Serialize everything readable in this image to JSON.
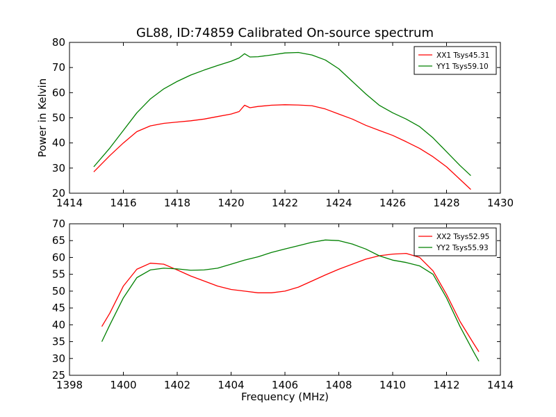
{
  "figure": {
    "title": "GL88, ID:74859 Calibrated On-source spectrum"
  },
  "chart_data": [
    {
      "type": "line",
      "ylabel": "Power in Kelvin",
      "xlabel": "",
      "xlim": [
        1414,
        1430
      ],
      "ylim": [
        20,
        80
      ],
      "xticks": [
        1414,
        1416,
        1418,
        1420,
        1422,
        1424,
        1426,
        1428,
        1430
      ],
      "yticks": [
        20,
        30,
        40,
        50,
        60,
        70,
        80
      ],
      "legend": "top-right",
      "series": [
        {
          "name": "XX1 Tsys45.31",
          "color": "#ff0000",
          "x": [
            1414.9,
            1415.5,
            1416.0,
            1416.5,
            1417.0,
            1417.5,
            1418.0,
            1418.5,
            1419.0,
            1419.5,
            1420.0,
            1420.3,
            1420.5,
            1420.7,
            1421.0,
            1421.5,
            1422.0,
            1422.5,
            1423.0,
            1423.5,
            1424.0,
            1424.5,
            1425.0,
            1425.5,
            1426.0,
            1426.5,
            1427.0,
            1427.5,
            1428.0,
            1428.5,
            1428.9
          ],
          "y": [
            28.5,
            35.0,
            40.0,
            44.5,
            46.8,
            47.8,
            48.3,
            48.8,
            49.5,
            50.5,
            51.5,
            52.5,
            55.0,
            54.0,
            54.5,
            55.0,
            55.2,
            55.1,
            54.8,
            53.5,
            51.5,
            49.5,
            47.0,
            45.0,
            43.0,
            40.5,
            37.8,
            34.5,
            30.5,
            25.5,
            21.5
          ]
        },
        {
          "name": "YY1 Tsys59.10",
          "color": "#008000",
          "x": [
            1414.9,
            1415.5,
            1416.0,
            1416.5,
            1417.0,
            1417.5,
            1418.0,
            1418.5,
            1419.0,
            1419.5,
            1420.0,
            1420.3,
            1420.5,
            1420.7,
            1421.0,
            1421.5,
            1422.0,
            1422.5,
            1423.0,
            1423.5,
            1424.0,
            1424.5,
            1425.0,
            1425.5,
            1426.0,
            1426.5,
            1427.0,
            1427.5,
            1428.0,
            1428.5,
            1428.9
          ],
          "y": [
            30.5,
            38.0,
            45.0,
            52.0,
            57.5,
            61.5,
            64.5,
            67.0,
            69.0,
            70.8,
            72.5,
            73.8,
            75.5,
            74.2,
            74.3,
            75.0,
            75.8,
            76.0,
            75.0,
            73.0,
            69.5,
            64.5,
            59.5,
            55.0,
            52.0,
            49.5,
            46.5,
            42.0,
            36.5,
            31.0,
            27.0
          ]
        }
      ]
    },
    {
      "type": "line",
      "xlabel": "Frequency (MHz)",
      "ylabel": "",
      "xlim": [
        1398,
        1414
      ],
      "ylim": [
        25,
        70
      ],
      "xticks": [
        1398,
        1400,
        1402,
        1404,
        1406,
        1408,
        1410,
        1412,
        1414
      ],
      "yticks": [
        25,
        30,
        35,
        40,
        45,
        50,
        55,
        60,
        65,
        70
      ],
      "legend": "top-right",
      "series": [
        {
          "name": "XX2 Tsys52.95",
          "color": "#ff0000",
          "x": [
            1399.2,
            1399.5,
            1400.0,
            1400.5,
            1401.0,
            1401.5,
            1402.0,
            1402.5,
            1403.0,
            1403.5,
            1404.0,
            1404.5,
            1405.0,
            1405.5,
            1406.0,
            1406.5,
            1407.0,
            1407.5,
            1408.0,
            1408.5,
            1409.0,
            1409.5,
            1410.0,
            1410.5,
            1411.0,
            1411.5,
            1412.0,
            1412.5,
            1413.0,
            1413.2
          ],
          "y": [
            39.5,
            43.5,
            51.5,
            56.5,
            58.3,
            58.0,
            56.3,
            54.5,
            53.0,
            51.5,
            50.5,
            50.0,
            49.5,
            49.5,
            50.0,
            51.2,
            53.0,
            54.8,
            56.5,
            58.0,
            59.5,
            60.5,
            61.0,
            61.2,
            60.0,
            56.0,
            49.0,
            41.0,
            34.5,
            32.0
          ]
        },
        {
          "name": "YY2 Tsys55.93",
          "color": "#008000",
          "x": [
            1399.2,
            1399.5,
            1400.0,
            1400.5,
            1401.0,
            1401.5,
            1402.0,
            1402.5,
            1403.0,
            1403.5,
            1404.0,
            1404.5,
            1405.0,
            1405.5,
            1406.0,
            1406.5,
            1407.0,
            1407.5,
            1408.0,
            1408.5,
            1409.0,
            1409.5,
            1410.0,
            1410.5,
            1411.0,
            1411.5,
            1412.0,
            1412.5,
            1413.0,
            1413.2
          ],
          "y": [
            35.0,
            40.0,
            48.0,
            54.0,
            56.3,
            56.8,
            56.6,
            56.2,
            56.3,
            56.8,
            58.0,
            59.2,
            60.2,
            61.5,
            62.5,
            63.5,
            64.5,
            65.2,
            65.0,
            64.0,
            62.5,
            60.5,
            59.2,
            58.5,
            57.5,
            55.0,
            48.0,
            39.5,
            32.0,
            29.2
          ]
        }
      ]
    }
  ]
}
